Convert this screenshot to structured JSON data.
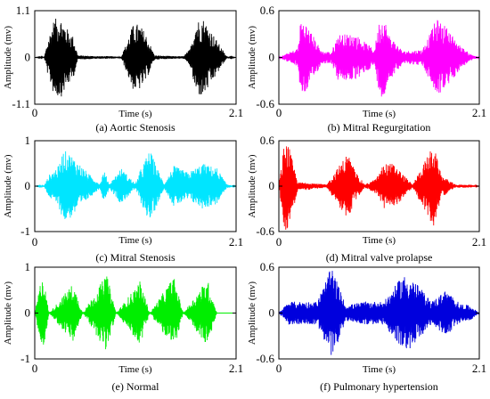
{
  "chart_data": [
    {
      "type": "line",
      "caption": "(a) Aortic Stenosis",
      "xlabel": "Time (s)",
      "ylabel": "Amplitude (mv)",
      "xlim": [
        0,
        2.1
      ],
      "ylim": [
        -1.1,
        1.1
      ],
      "x_ticks": [
        "0",
        "2.1"
      ],
      "y_ticks": [
        "1.1",
        "0",
        "-1.1"
      ],
      "color": "#000000",
      "signal_x": [
        0,
        0.1,
        0.13,
        0.2,
        0.27,
        0.33,
        0.4,
        0.45,
        0.55,
        0.66,
        0.8,
        0.9,
        0.95,
        1.02,
        1.08,
        1.15,
        1.25,
        1.35,
        1.45,
        1.55,
        1.62,
        1.68,
        1.75,
        1.82,
        1.9,
        2.0,
        2.1
      ],
      "signal_y": [
        0,
        0.02,
        0.35,
        0.9,
        -0.95,
        0.7,
        -0.5,
        0.05,
        0.04,
        0.03,
        0.03,
        0.02,
        0.3,
        0.75,
        -0.8,
        0.6,
        0.05,
        0.04,
        0.03,
        0.03,
        0.2,
        0.85,
        -0.95,
        0.7,
        -0.4,
        0.03,
        0.0
      ]
    },
    {
      "type": "line",
      "caption": "(b) Mitral Regurgitation",
      "xlabel": "Time (s)",
      "ylabel": "Amplitude (mv)",
      "xlim": [
        0,
        2.1
      ],
      "ylim": [
        -0.6,
        0.6
      ],
      "x_ticks": [
        "0",
        "2.1"
      ],
      "y_ticks": [
        "0.6",
        "0",
        "-0.6"
      ],
      "color": "#ff00ff",
      "signal_x": [
        0,
        0.1,
        0.2,
        0.23,
        0.28,
        0.35,
        0.45,
        0.55,
        0.62,
        0.7,
        0.8,
        0.9,
        1.0,
        1.05,
        1.1,
        1.15,
        1.3,
        1.5,
        1.6,
        1.65,
        1.75,
        1.9,
        2.0,
        2.1
      ],
      "signal_y": [
        0,
        0.06,
        0.12,
        0.5,
        -0.45,
        0.3,
        0.08,
        0.07,
        0.3,
        -0.3,
        0.3,
        -0.2,
        0.1,
        0.45,
        -0.55,
        0.3,
        0.08,
        0.1,
        0.35,
        0.5,
        -0.4,
        0.15,
        0.05,
        0.0
      ]
    },
    {
      "type": "line",
      "caption": "(c) Mitral Stenosis",
      "xlabel": "Time (s)",
      "ylabel": "Amplitude (mv)",
      "xlim": [
        0,
        2.1
      ],
      "ylim": [
        -1,
        1
      ],
      "x_ticks": [
        "0",
        "2.1"
      ],
      "y_ticks": [
        "1",
        "0",
        "-1"
      ],
      "color": "#00e5ff",
      "signal_x": [
        0,
        0.1,
        0.15,
        0.25,
        0.3,
        0.38,
        0.55,
        0.68,
        0.72,
        0.78,
        0.9,
        1.05,
        1.1,
        1.2,
        1.35,
        1.45,
        1.6,
        1.75,
        1.9,
        2.0,
        2.1
      ],
      "signal_y": [
        0,
        0.02,
        0.25,
        0.45,
        -0.8,
        0.7,
        0.3,
        0.05,
        0.35,
        0.05,
        0.4,
        0.05,
        0.35,
        -0.8,
        0.05,
        0.45,
        -0.3,
        0.5,
        0.4,
        0.05,
        0.0
      ]
    },
    {
      "type": "line",
      "caption": "(d) Mitral valve prolapse",
      "xlabel": "Time (s)",
      "ylabel": "Amplitude (mv)",
      "xlim": [
        0,
        2.1
      ],
      "ylim": [
        -0.6,
        0.6
      ],
      "x_ticks": [
        "0",
        "2.1"
      ],
      "y_ticks": [
        "0.6",
        "0",
        "-0.6"
      ],
      "color": "#ff0000",
      "signal_x": [
        0,
        0.06,
        0.1,
        0.2,
        0.3,
        0.5,
        0.7,
        0.72,
        0.8,
        0.9,
        1.02,
        1.1,
        1.2,
        1.4,
        1.6,
        1.62,
        1.7,
        1.85,
        2.0,
        2.1
      ],
      "signal_y": [
        0,
        0.6,
        -0.55,
        0.05,
        0.05,
        0.02,
        0.4,
        -0.45,
        0.2,
        0.02,
        0.1,
        0.3,
        -0.3,
        0.02,
        0.5,
        -0.55,
        0.15,
        0.02,
        0.02,
        0.0
      ]
    },
    {
      "type": "line",
      "caption": "(e) Normal",
      "xlabel": "Time (s)",
      "ylabel": "Amplitude (mv)",
      "xlim": [
        0,
        2.1
      ],
      "ylim": [
        -1,
        1
      ],
      "x_ticks": [
        "0",
        "2.1"
      ],
      "y_ticks": [
        "1",
        "0",
        "-1"
      ],
      "color": "#00ee00",
      "signal_x": [
        0,
        0.08,
        0.15,
        0.4,
        0.5,
        0.75,
        0.85,
        1.1,
        1.2,
        1.45,
        1.55,
        1.8,
        1.9,
        2.1
      ],
      "signal_y": [
        0,
        0.9,
        0.0,
        0.65,
        0.0,
        0.85,
        0.0,
        0.7,
        0.0,
        0.8,
        0.0,
        0.75,
        0.0,
        0.0
      ]
    },
    {
      "type": "line",
      "caption": "(f) Pulmonary hypertension",
      "xlabel": "Time (s)",
      "ylabel": "Amplitude (mv)",
      "xlim": [
        0,
        2.1
      ],
      "ylim": [
        -0.6,
        0.6
      ],
      "x_ticks": [
        "0",
        "2.1"
      ],
      "y_ticks": [
        "0.6",
        "0",
        "-0.6"
      ],
      "color": "#0000dd",
      "signal_x": [
        0,
        0.1,
        0.25,
        0.4,
        0.55,
        0.57,
        0.7,
        0.9,
        1.1,
        1.3,
        1.4,
        1.6,
        1.75,
        1.9,
        2.0,
        2.1
      ],
      "signal_y": [
        0,
        0.15,
        0.15,
        0.15,
        0.6,
        -0.55,
        0.1,
        0.15,
        0.15,
        0.5,
        -0.45,
        0.15,
        0.3,
        0.12,
        0.1,
        0.0
      ]
    }
  ]
}
